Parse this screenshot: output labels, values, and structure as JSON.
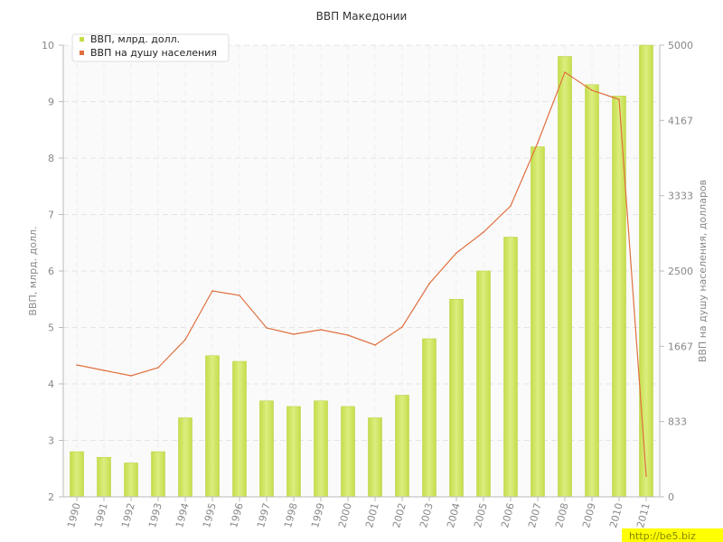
{
  "chart_data": {
    "type": "bar",
    "title": "ВВП Македонии",
    "categories": [
      "1990",
      "1991",
      "1992",
      "1993",
      "1994",
      "1995",
      "1996",
      "1997",
      "1998",
      "1999",
      "2000",
      "2001",
      "2002",
      "2003",
      "2004",
      "2005",
      "2006",
      "2007",
      "2008",
      "2009",
      "2010",
      "2011"
    ],
    "series": [
      {
        "name": "ВВП, млрд. долл.",
        "type": "bar",
        "axis": "left",
        "color": "#c4dd4a",
        "values": [
          2.8,
          2.7,
          2.6,
          2.8,
          3.4,
          4.5,
          4.4,
          3.7,
          3.6,
          3.7,
          3.6,
          3.4,
          3.8,
          4.8,
          5.5,
          6.0,
          6.6,
          8.2,
          9.8,
          9.3,
          9.1,
          10.0
        ]
      },
      {
        "name": "ВВП на душу населения",
        "type": "line",
        "axis": "right",
        "color": "#e07040",
        "values": [
          1460,
          1400,
          1340,
          1430,
          1740,
          2280,
          2230,
          1870,
          1800,
          1850,
          1790,
          1680,
          1880,
          2360,
          2700,
          2930,
          3220,
          3920,
          4700,
          4500,
          4400,
          230
        ]
      }
    ],
    "yaxis_left": {
      "label": "ВВП, млрд. долл.",
      "range": [
        2,
        10
      ],
      "ticks": [
        "2",
        "3",
        "4",
        "5",
        "6",
        "7",
        "8",
        "9",
        "10"
      ]
    },
    "yaxis_right": {
      "label": "ВВП на душу населения, долларов",
      "range": [
        0,
        5000
      ],
      "ticks": [
        "0",
        "833",
        "1667",
        "2500",
        "3333",
        "4167",
        "5000"
      ]
    },
    "grid": true,
    "legend_position": "top-left",
    "watermark": "http://be5.biz"
  }
}
